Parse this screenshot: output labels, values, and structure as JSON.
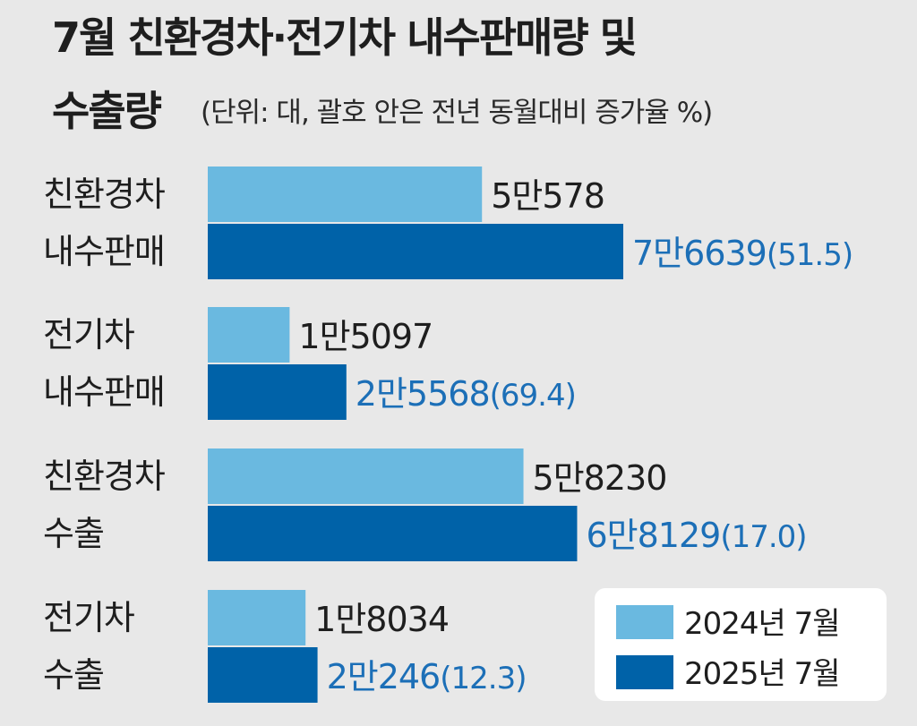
{
  "title_line1": "7월 친환경차·전기차 내수판매량 및",
  "title_line2": "수출량",
  "unit_note": "(단위: 대, 괄호 안은 전년 동월대비 증가율 %)",
  "colors": {
    "prev": "#6ab9e0",
    "cur": "#0062a8",
    "cur_label": "#1c6fb7",
    "background": "#e8e8e8",
    "legend_box": "#ffffff"
  },
  "chart_data": {
    "type": "bar",
    "orientation": "horizontal",
    "categories": [
      [
        "친환경차",
        "내수판매"
      ],
      [
        "전기차",
        "내수판매"
      ],
      [
        "친환경차",
        "수출"
      ],
      [
        "전기차",
        "수출"
      ]
    ],
    "series": [
      {
        "name": "2024년 7월",
        "values": [
          50578,
          15097,
          58230,
          18034
        ],
        "labels": [
          "5만578",
          "1만5097",
          "5만8230",
          "1만8034"
        ]
      },
      {
        "name": "2025년 7월",
        "values": [
          76639,
          25568,
          68129,
          20246
        ],
        "labels": [
          "7만6639",
          "2만5568",
          "6만8129",
          "2만246"
        ],
        "growth_labels": [
          "(51.5)",
          "(69.4)",
          "(17.0)",
          "(12.3)"
        ]
      }
    ],
    "legend_position": "bottom-right"
  }
}
